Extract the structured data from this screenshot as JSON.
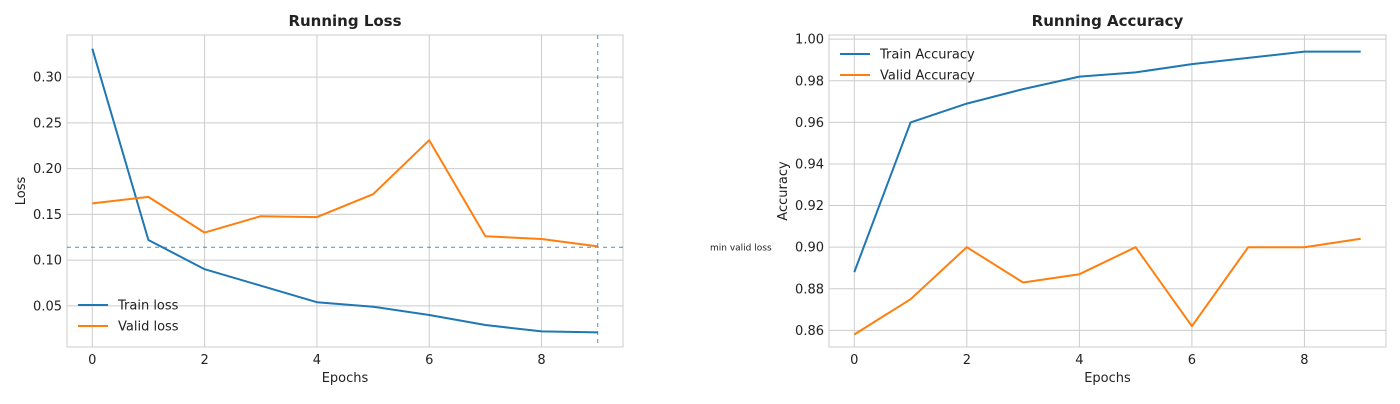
{
  "chart_data": [
    {
      "type": "line",
      "title": "Running Loss",
      "xlabel": "Epochs",
      "ylabel": "Loss",
      "x": [
        0,
        1,
        2,
        3,
        4,
        5,
        6,
        7,
        8,
        9
      ],
      "xlim": [
        -0.45,
        9.45
      ],
      "ylim": [
        0.005,
        0.346
      ],
      "xticks": [
        0,
        2,
        4,
        6,
        8
      ],
      "xtick_labels": [
        "0",
        "2",
        "4",
        "6",
        "8"
      ],
      "yticks": [
        0.05,
        0.1,
        0.15,
        0.2,
        0.25,
        0.3
      ],
      "ytick_labels": [
        "0.05",
        "0.10",
        "0.15",
        "0.20",
        "0.25",
        "0.30"
      ],
      "grid": true,
      "legend_position": "lower-left",
      "series": [
        {
          "name": "Train loss",
          "color": "#1f77b4",
          "values": [
            0.331,
            0.122,
            0.09,
            0.072,
            0.054,
            0.049,
            0.04,
            0.029,
            0.022,
            0.021
          ]
        },
        {
          "name": "Valid loss",
          "color": "#ff7f0e",
          "values": [
            0.162,
            0.169,
            0.13,
            0.148,
            0.147,
            0.172,
            0.231,
            0.126,
            0.123,
            0.115
          ]
        }
      ],
      "reference_lines": {
        "color": "#1f77b4",
        "vertical_x": 9,
        "horizontal_y": 0.114,
        "annotation": "min valid loss"
      }
    },
    {
      "type": "line",
      "title": "Running Accuracy",
      "xlabel": "Epochs",
      "ylabel": "Accuracy",
      "x": [
        0,
        1,
        2,
        3,
        4,
        5,
        6,
        7,
        8,
        9
      ],
      "xlim": [
        -0.45,
        9.45
      ],
      "ylim": [
        0.852,
        1.002
      ],
      "xticks": [
        0,
        2,
        4,
        6,
        8
      ],
      "xtick_labels": [
        "0",
        "2",
        "4",
        "6",
        "8"
      ],
      "yticks": [
        0.86,
        0.88,
        0.9,
        0.92,
        0.94,
        0.96,
        0.98,
        1.0
      ],
      "ytick_labels": [
        "0.86",
        "0.88",
        "0.90",
        "0.92",
        "0.94",
        "0.96",
        "0.98",
        "1.00"
      ],
      "grid": true,
      "legend_position": "top-left",
      "series": [
        {
          "name": "Train Accuracy",
          "color": "#1f77b4",
          "values": [
            0.888,
            0.96,
            0.969,
            0.976,
            0.982,
            0.984,
            0.988,
            0.991,
            0.994,
            0.994
          ]
        },
        {
          "name": "Valid Accuracy",
          "color": "#ff7f0e",
          "values": [
            0.858,
            0.875,
            0.9,
            0.883,
            0.887,
            0.9,
            0.862,
            0.9,
            0.9,
            0.904
          ]
        }
      ]
    }
  ]
}
